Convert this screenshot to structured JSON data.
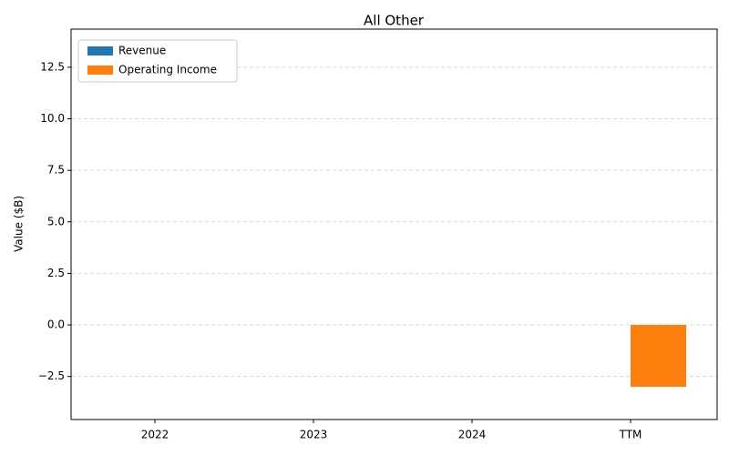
{
  "chart_data": {
    "type": "bar",
    "title": "All Other",
    "y_label": "Value ($B)",
    "categories": [
      "2022",
      "2023",
      "2024",
      "TTM"
    ],
    "series": [
      {
        "name": "Revenue",
        "color": "#1f77b4",
        "values": [
          0,
          0,
          0,
          0
        ]
      },
      {
        "name": "Operating Income",
        "color": "#ff7f0e",
        "values": [
          0,
          0,
          0,
          -3.0
        ]
      }
    ],
    "ylim": [
      -4.59,
      14.35
    ],
    "yticks": [
      {
        "value": -2.5,
        "label": "−2.5"
      },
      {
        "value": 0,
        "label": "0.0"
      },
      2.5,
      {
        "value": 5,
        "label": "5.0"
      },
      7.5,
      {
        "value": 10,
        "label": "10.0"
      },
      12.5
    ],
    "grid": true,
    "legend": "upper-left"
  }
}
